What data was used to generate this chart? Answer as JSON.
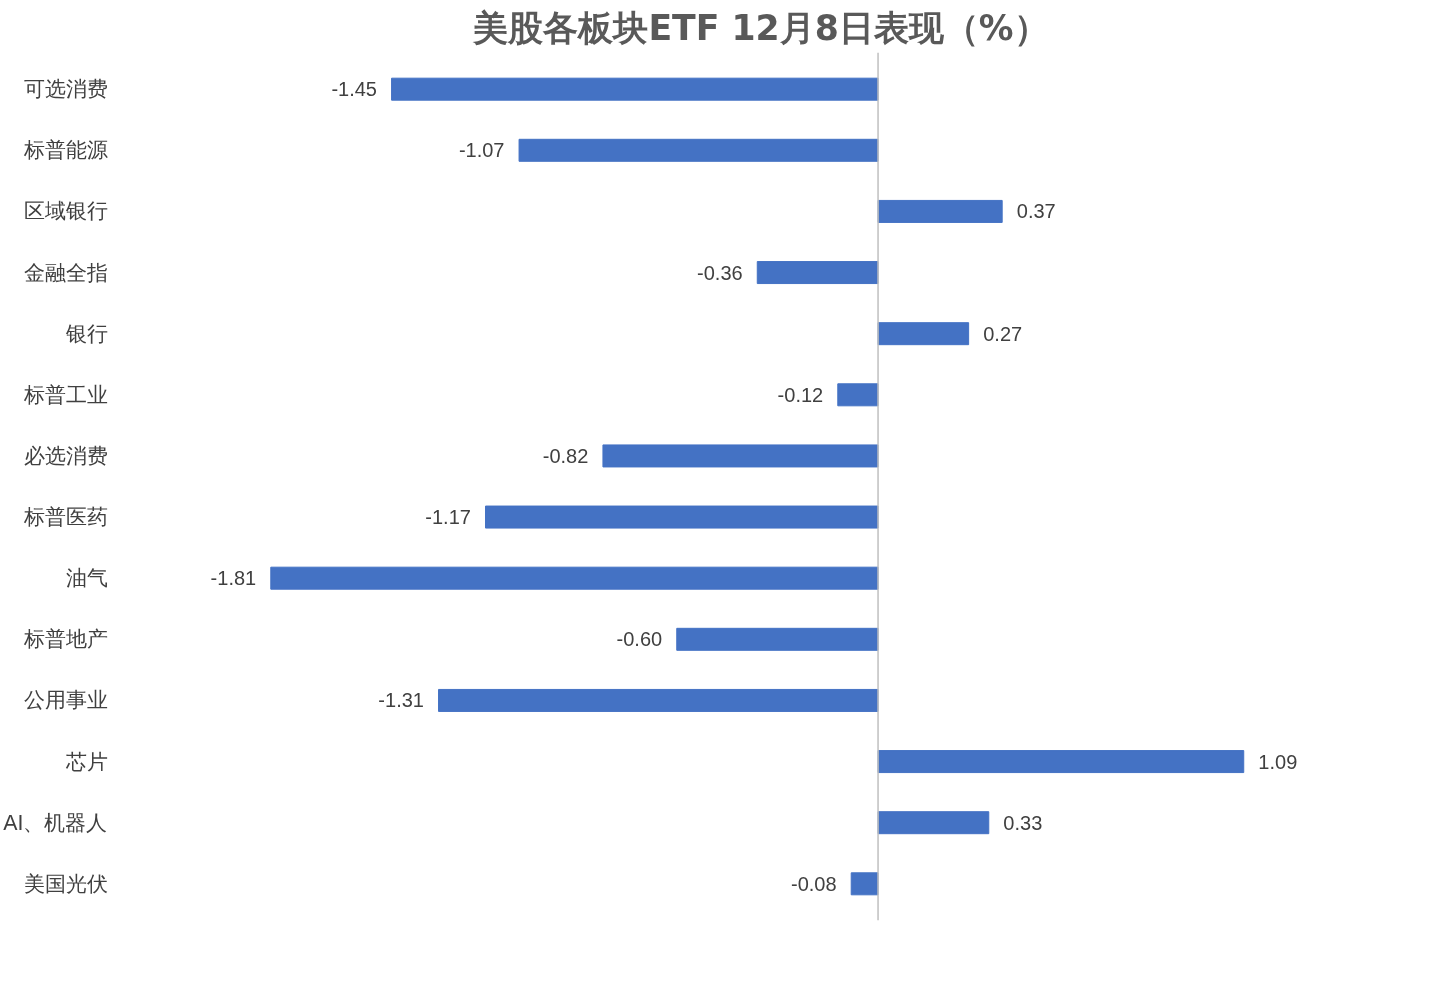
{
  "chart_data": {
    "type": "bar",
    "orientation": "horizontal",
    "title": "美股各板块ETF  12月8日表现（%）",
    "categories": [
      "可选消费",
      "标普能源",
      "区域银行",
      "金融全指",
      "银行",
      "标普工业",
      "必选消费",
      "标普医药",
      "油气",
      "标普地产",
      "公用事业",
      "芯片",
      "AI、机器人",
      "美国光伏"
    ],
    "values": [
      -1.45,
      -1.07,
      0.37,
      -0.36,
      0.27,
      -0.12,
      -0.82,
      -1.17,
      -1.81,
      -0.6,
      -1.31,
      1.09,
      0.33,
      -0.08
    ],
    "value_labels": [
      "-1.45",
      "-1.07",
      "0.37",
      "-0.36",
      "0.27",
      "-0.12",
      "-0.82",
      "-1.17",
      "-1.81",
      "-0.60",
      "-1.31",
      "1.09",
      "0.33",
      "-0.08"
    ],
    "color": "#4472c4",
    "grid": false
  }
}
